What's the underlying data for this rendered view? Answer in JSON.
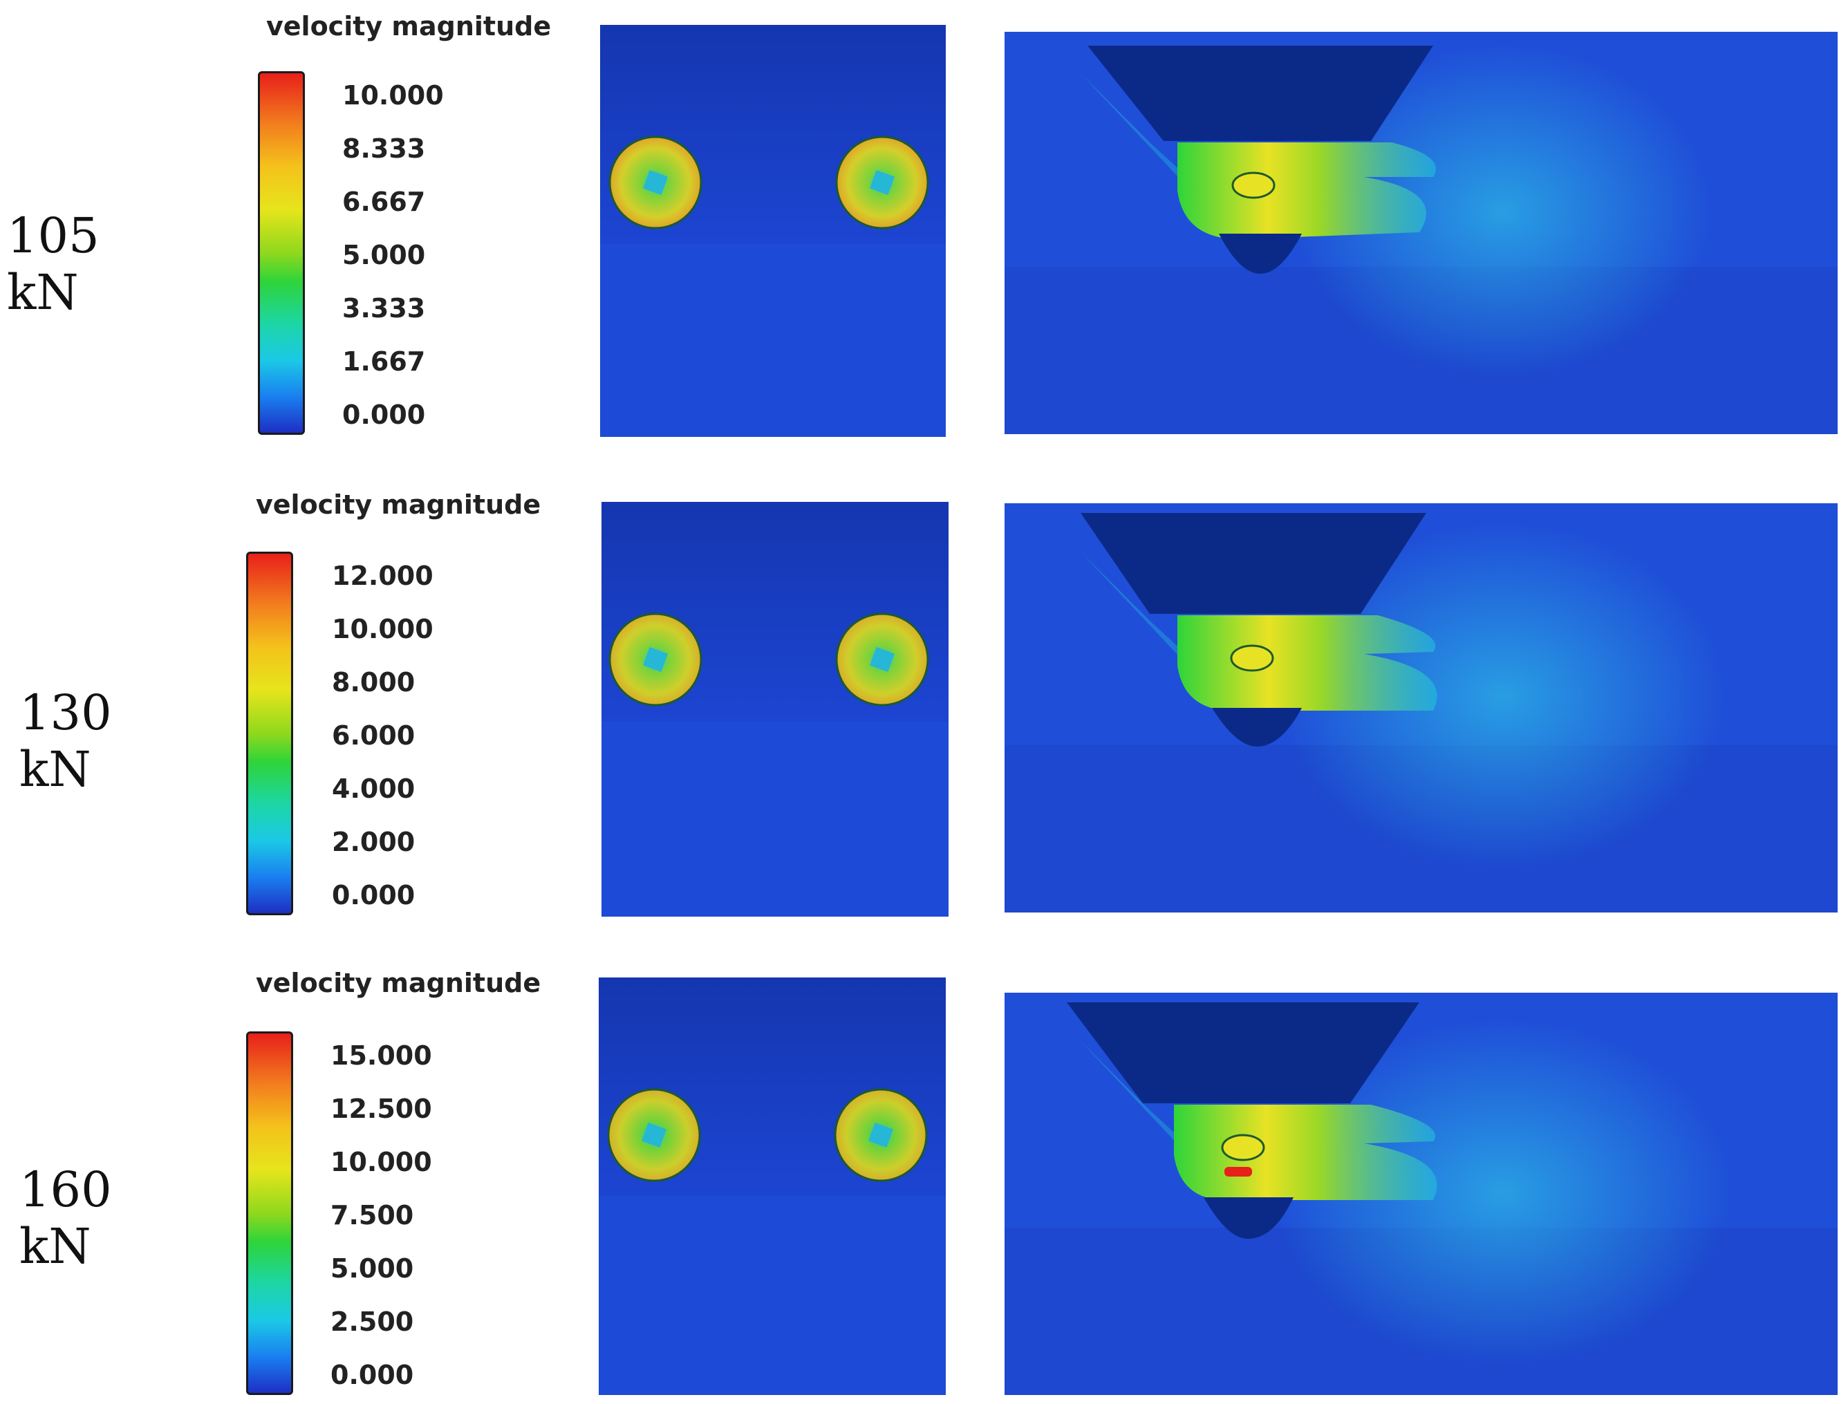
{
  "rows": [
    {
      "thrust": "105 kN",
      "legend_title": "velocity magnitude",
      "ticks": [
        "10.000",
        "8.333",
        "6.667",
        "5.000",
        "3.333",
        "1.667",
        "0.000"
      ]
    },
    {
      "thrust": "130 kN",
      "legend_title": "velocity magnitude",
      "ticks": [
        "12.000",
        "10.000",
        "8.000",
        "6.000",
        "4.000",
        "2.000",
        "0.000"
      ]
    },
    {
      "thrust": "160 kN",
      "legend_title": "velocity magnitude",
      "ticks": [
        "15.000",
        "12.500",
        "10.000",
        "7.500",
        "5.000",
        "2.500",
        "0.000"
      ]
    }
  ],
  "colors": {
    "background_blue": "#1f4fd8",
    "deep_blue": "#0d2f9e",
    "hull_navy": "#0b2a88",
    "jet_green": "#3fd83a",
    "jet_yellow": "#e8e224",
    "jet_orange": "#f0952a",
    "cyan": "#22c9e0"
  }
}
